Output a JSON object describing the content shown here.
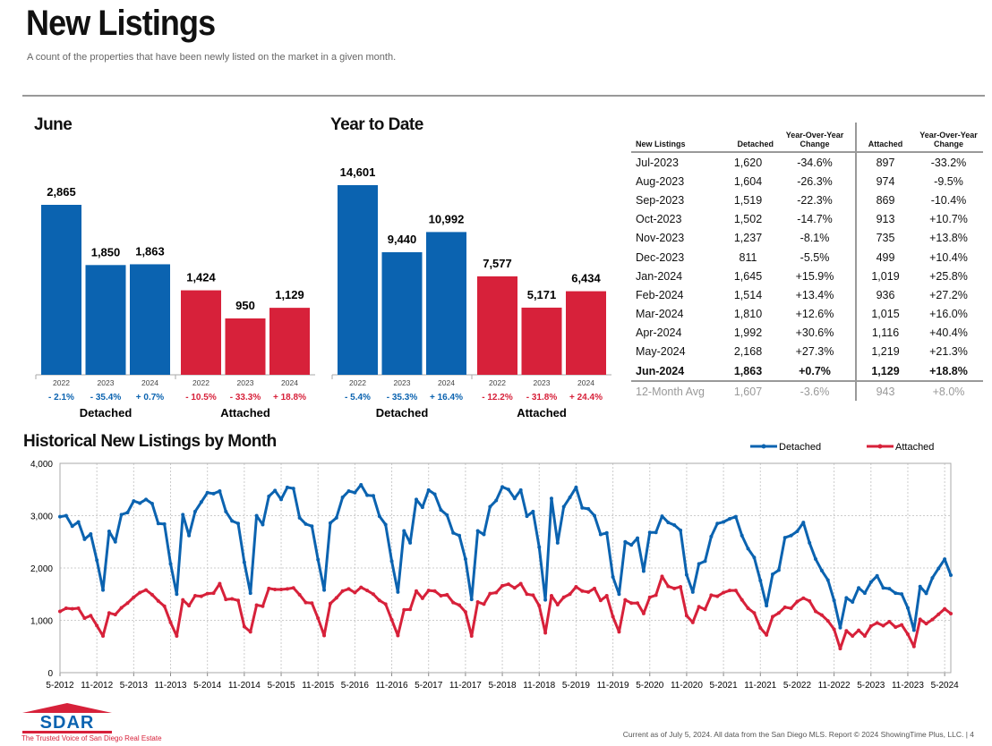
{
  "header": {
    "title": "New Listings",
    "subtitle": "A count of the properties that have been newly listed on the market in a given month."
  },
  "colors": {
    "detached": "#0b63b0",
    "attached": "#d7213a"
  },
  "chart_data": [
    {
      "type": "bar",
      "title": "June",
      "categories": [
        "2022",
        "2023",
        "2024"
      ],
      "series": [
        {
          "name": "Detached",
          "values": [
            2865,
            1850,
            1863
          ],
          "changes": [
            "- 2.1%",
            "- 35.4%",
            "+ 0.7%"
          ]
        },
        {
          "name": "Attached",
          "values": [
            1424,
            950,
            1129
          ],
          "changes": [
            "- 10.5%",
            "- 33.3%",
            "+ 18.8%"
          ]
        }
      ]
    },
    {
      "type": "bar",
      "title": "Year to Date",
      "categories": [
        "2022",
        "2023",
        "2024"
      ],
      "series": [
        {
          "name": "Detached",
          "values": [
            14601,
            9440,
            10992
          ],
          "changes": [
            "- 5.4%",
            "- 35.3%",
            "+ 16.4%"
          ]
        },
        {
          "name": "Attached",
          "values": [
            7577,
            5171,
            6434
          ],
          "changes": [
            "- 12.2%",
            "- 31.8%",
            "+ 24.4%"
          ]
        }
      ]
    },
    {
      "type": "line",
      "title": "Historical New Listings by Month",
      "legend": "top-right",
      "grid": true,
      "ylim": [
        0,
        4000
      ],
      "yticks": [
        "0",
        "1,000",
        "2,000",
        "3,000",
        "4,000"
      ],
      "x_start": "5-2012",
      "x_end": "6-2024",
      "xticks": [
        "5-2012",
        "11-2012",
        "5-2013",
        "11-2013",
        "5-2014",
        "11-2014",
        "5-2015",
        "11-2015",
        "5-2016",
        "11-2016",
        "5-2017",
        "11-2017",
        "5-2018",
        "11-2018",
        "5-2019",
        "11-2019",
        "5-2020",
        "11-2020",
        "5-2021",
        "11-2021",
        "5-2022",
        "11-2022",
        "5-2023",
        "11-2023",
        "5-2024"
      ],
      "series": [
        {
          "name": "Detached",
          "values": [
            2980,
            3000,
            2800,
            2880,
            2550,
            2650,
            2150,
            1580,
            2700,
            2500,
            3020,
            3060,
            3280,
            3240,
            3310,
            3230,
            2850,
            2840,
            2080,
            1500,
            3020,
            2620,
            3080,
            3260,
            3440,
            3420,
            3470,
            3080,
            2900,
            2850,
            2110,
            1520,
            3000,
            2830,
            3370,
            3480,
            3310,
            3540,
            3520,
            2960,
            2840,
            2800,
            2160,
            1580,
            2860,
            2960,
            3350,
            3470,
            3440,
            3590,
            3390,
            3380,
            2990,
            2830,
            2130,
            1540,
            2710,
            2480,
            3310,
            3160,
            3490,
            3410,
            3110,
            3010,
            2670,
            2620,
            2170,
            1400,
            2710,
            2640,
            3170,
            3290,
            3550,
            3500,
            3330,
            3490,
            2990,
            3080,
            2400,
            1390,
            3330,
            2480,
            3170,
            3350,
            3540,
            3150,
            3130,
            3000,
            2640,
            2670,
            1830,
            1500,
            2500,
            2440,
            2570,
            1940,
            2680,
            2680,
            2990,
            2870,
            2820,
            2720,
            1870,
            1540,
            2080,
            2130,
            2600,
            2850,
            2880,
            2940,
            2980,
            2620,
            2370,
            2200,
            1760,
            1280,
            1880,
            1960,
            2580,
            2620,
            2700,
            2870,
            2480,
            2170,
            1950,
            1770,
            1380,
            860,
            1430,
            1350,
            1620,
            1520,
            1730,
            1850,
            1620,
            1604,
            1519,
            1502,
            1237,
            811,
            1645,
            1514,
            1810,
            1992,
            2168,
            1863
          ]
        },
        {
          "name": "Attached",
          "values": [
            1170,
            1230,
            1220,
            1230,
            1040,
            1090,
            900,
            700,
            1140,
            1110,
            1240,
            1330,
            1440,
            1530,
            1580,
            1490,
            1370,
            1270,
            960,
            700,
            1390,
            1280,
            1470,
            1460,
            1510,
            1520,
            1700,
            1400,
            1410,
            1380,
            880,
            780,
            1290,
            1270,
            1610,
            1590,
            1590,
            1600,
            1620,
            1490,
            1340,
            1330,
            1040,
            710,
            1320,
            1430,
            1560,
            1600,
            1530,
            1630,
            1570,
            1500,
            1380,
            1310,
            1010,
            710,
            1200,
            1210,
            1560,
            1420,
            1570,
            1560,
            1470,
            1490,
            1340,
            1290,
            1160,
            700,
            1350,
            1310,
            1510,
            1530,
            1660,
            1690,
            1620,
            1700,
            1500,
            1480,
            1280,
            760,
            1470,
            1300,
            1440,
            1500,
            1640,
            1560,
            1540,
            1610,
            1380,
            1470,
            1070,
            780,
            1390,
            1330,
            1330,
            1130,
            1440,
            1480,
            1840,
            1650,
            1610,
            1640,
            1090,
            960,
            1260,
            1210,
            1480,
            1460,
            1530,
            1570,
            1570,
            1390,
            1230,
            1140,
            855,
            720,
            1070,
            1140,
            1250,
            1230,
            1360,
            1424,
            1370,
            1170,
            1100,
            990,
            830,
            460,
            800,
            700,
            810,
            700,
            890,
            950,
            897,
            974,
            869,
            913,
            735,
            499,
            1019,
            936,
            1015,
            1116,
            1219,
            1129
          ]
        }
      ]
    }
  ],
  "table": {
    "headers": [
      "New Listings",
      "Detached",
      "Year-Over-Year Change",
      "Attached",
      "Year-Over-Year Change"
    ],
    "rows": [
      [
        "Jul-2023",
        "1,620",
        "-34.6%",
        "897",
        "-33.2%"
      ],
      [
        "Aug-2023",
        "1,604",
        "-26.3%",
        "974",
        "-9.5%"
      ],
      [
        "Sep-2023",
        "1,519",
        "-22.3%",
        "869",
        "-10.4%"
      ],
      [
        "Oct-2023",
        "1,502",
        "-14.7%",
        "913",
        "+10.7%"
      ],
      [
        "Nov-2023",
        "1,237",
        "-8.1%",
        "735",
        "+13.8%"
      ],
      [
        "Dec-2023",
        "811",
        "-5.5%",
        "499",
        "+10.4%"
      ],
      [
        "Jan-2024",
        "1,645",
        "+15.9%",
        "1,019",
        "+25.8%"
      ],
      [
        "Feb-2024",
        "1,514",
        "+13.4%",
        "936",
        "+27.2%"
      ],
      [
        "Mar-2024",
        "1,810",
        "+12.6%",
        "1,015",
        "+16.0%"
      ],
      [
        "Apr-2024",
        "1,992",
        "+30.6%",
        "1,116",
        "+40.4%"
      ],
      [
        "May-2024",
        "2,168",
        "+27.3%",
        "1,219",
        "+21.3%"
      ],
      [
        "Jun-2024",
        "1,863",
        "+0.7%",
        "1,129",
        "+18.8%"
      ],
      [
        "12-Month Avg",
        "1,607",
        "-3.6%",
        "943",
        "+8.0%"
      ]
    ]
  },
  "footer": {
    "logo_text": "SDAR",
    "logo_tagline": "The Trusted Voice of San Diego Real Estate",
    "note": "Current as of July 5, 2024. All data from the San Diego MLS. Report © 2024 ShowingTime Plus, LLC.  |  4"
  }
}
